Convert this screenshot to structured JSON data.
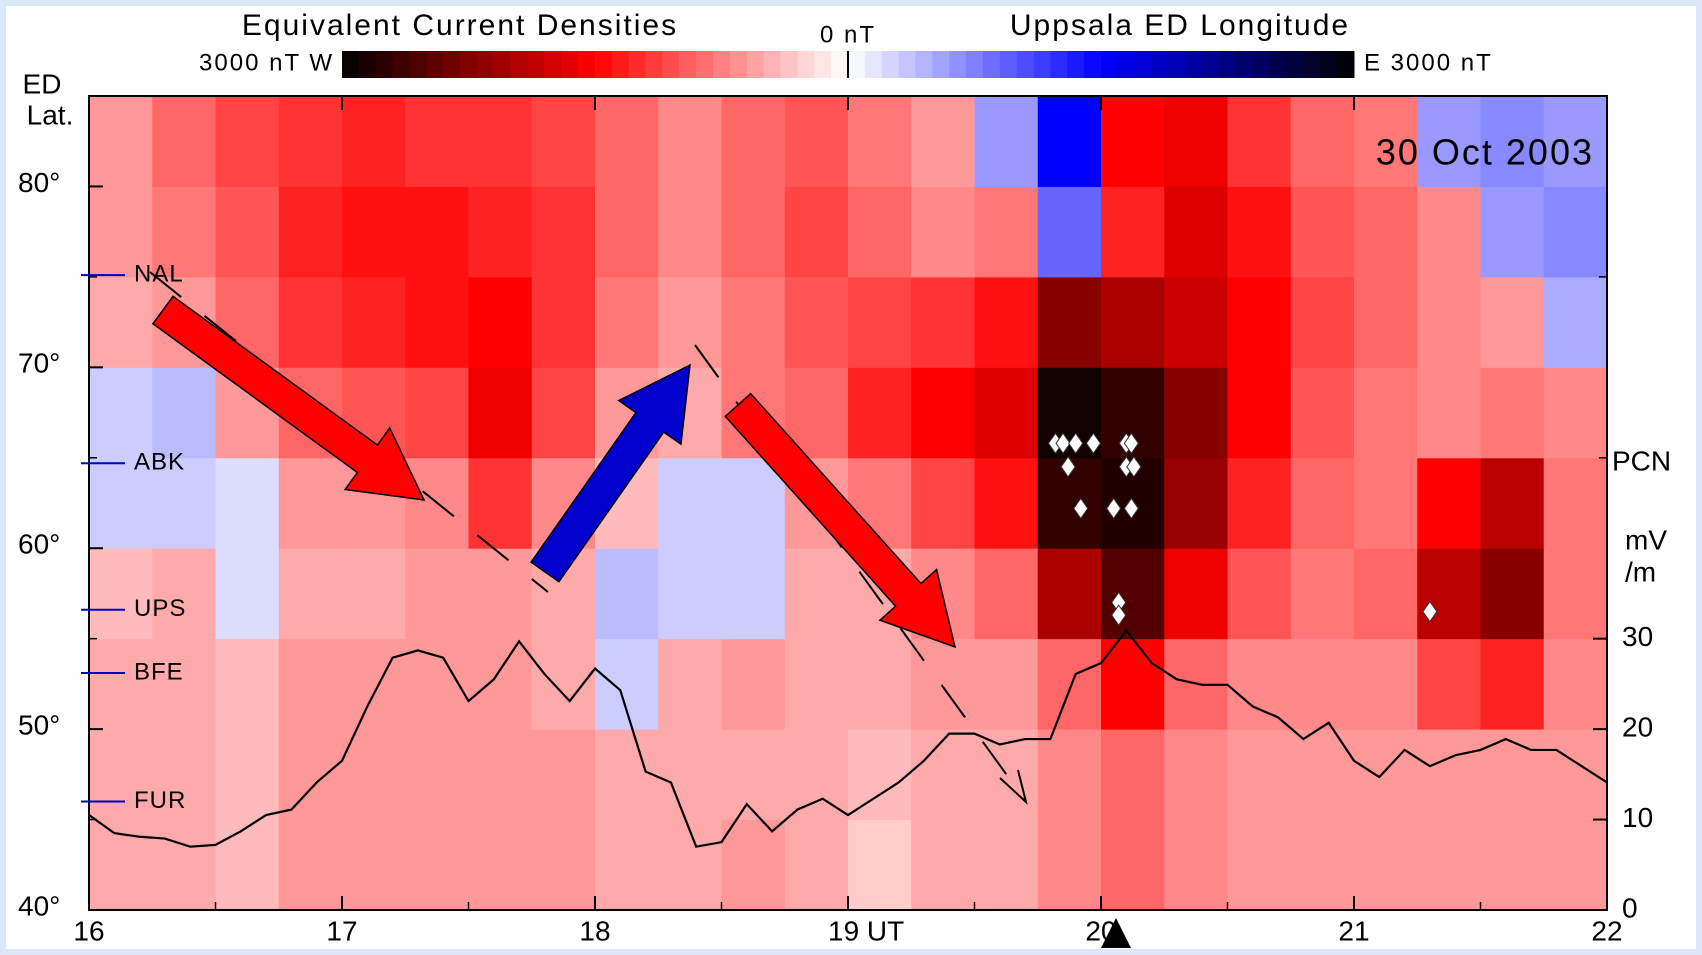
{
  "chart_data": {
    "type": "heatmap",
    "title": "Equivalent Current Densities",
    "subtitle": "Uppsala ED Longitude",
    "date_label": "30 Oct 2003",
    "ylabel_lines": [
      "ED",
      "Lat."
    ],
    "y2label_lines": [
      "mV",
      "/m"
    ],
    "colorbar": {
      "lim": [
        -3000,
        3000
      ],
      "ticks": [
        {
          "value": -3000,
          "label": "3000 nT W"
        },
        {
          "value": 0,
          "label": "0 nT"
        },
        {
          "value": 3000,
          "label": "E 3000 nT"
        }
      ]
    },
    "xlim": [
      16,
      22
    ],
    "xticks": [
      16,
      17,
      18,
      {
        "value": 19,
        "label": "19 UT"
      },
      20,
      21,
      22
    ],
    "ylim": [
      40,
      85
    ],
    "yticks": [
      {
        "value": 40,
        "label": "40°"
      },
      {
        "value": 50,
        "label": "50°"
      },
      {
        "value": 60,
        "label": "60°"
      },
      {
        "value": 70,
        "label": "70°"
      },
      {
        "value": 80,
        "label": "80°"
      }
    ],
    "y2lim": [
      0,
      90
    ],
    "y2ticks": [
      0,
      10,
      20,
      30
    ],
    "stations": {
      "names": [
        "NAL",
        "ABK",
        "UPS",
        "BFE",
        "FUR"
      ],
      "lat": [
        75.1,
        64.7,
        56.6,
        53.1,
        46.0
      ],
      "color": "#0000cc"
    },
    "heatmap": {
      "x_edges": [
        16,
        16.25,
        16.5,
        16.75,
        17,
        17.25,
        17.5,
        17.75,
        18,
        18.25,
        18.5,
        18.75,
        19,
        19.25,
        19.5,
        19.75,
        20,
        20.25,
        20.5,
        20.75,
        21,
        21.25,
        21.5,
        21.75,
        22
      ],
      "lat_edges": [
        40,
        45,
        50,
        55,
        60,
        65,
        70,
        75,
        80,
        85
      ],
      "values": [
        [
          -500,
          -500,
          -400,
          -600,
          -600,
          -600,
          -600,
          -600,
          -500,
          -500,
          -600,
          -500,
          -300,
          -500,
          -500,
          -700,
          -900,
          -700,
          -600,
          -600,
          -600,
          -600,
          -600,
          -600
        ],
        [
          -500,
          -500,
          -400,
          -600,
          -600,
          -600,
          -600,
          -600,
          -500,
          -500,
          -500,
          -500,
          -400,
          -500,
          -500,
          -700,
          -900,
          -700,
          -600,
          -600,
          -600,
          -600,
          -600,
          -600
        ],
        [
          -500,
          -500,
          -400,
          -600,
          -600,
          -600,
          -600,
          -500,
          300,
          -500,
          -600,
          -500,
          -500,
          -600,
          -600,
          -900,
          -1500,
          -900,
          -700,
          -700,
          -700,
          -1100,
          -1300,
          -700
        ],
        [
          -400,
          -500,
          200,
          -500,
          -500,
          -600,
          -600,
          -500,
          400,
          300,
          300,
          -500,
          -500,
          -700,
          -900,
          -2000,
          -2500,
          -1600,
          -1000,
          -800,
          -900,
          -1900,
          -2200,
          -800
        ],
        [
          300,
          300,
          200,
          -600,
          -600,
          -700,
          -1200,
          -700,
          -400,
          300,
          300,
          -600,
          -800,
          -1100,
          -1400,
          -2700,
          -2800,
          -2100,
          -1300,
          -900,
          -800,
          -1500,
          -1900,
          -800
        ],
        [
          300,
          400,
          -600,
          -900,
          -1000,
          -1100,
          -1600,
          -1100,
          -600,
          -500,
          -800,
          -900,
          -1300,
          -1500,
          -1700,
          -2900,
          -2700,
          -2200,
          -1500,
          -1000,
          -800,
          -700,
          -800,
          -700
        ],
        [
          -500,
          -600,
          -900,
          -1200,
          -1300,
          -1400,
          -1500,
          -1200,
          -800,
          -600,
          -800,
          -1000,
          -1100,
          -1200,
          -1400,
          -2200,
          -2000,
          -1800,
          -1500,
          -1100,
          -900,
          -700,
          -600,
          500
        ],
        [
          -600,
          -800,
          -1000,
          -1300,
          -1400,
          -1400,
          -1300,
          -1200,
          -900,
          -700,
          -900,
          -1100,
          -900,
          -700,
          -800,
          900,
          -1300,
          -1700,
          -1400,
          -1000,
          -900,
          -700,
          600,
          700
        ],
        [
          -600,
          -900,
          -1100,
          -1200,
          -1300,
          -1200,
          -1200,
          -1100,
          -900,
          -700,
          -900,
          -1000,
          -800,
          -600,
          600,
          1500,
          -1500,
          -1600,
          -1200,
          -900,
          -800,
          600,
          700,
          600
        ]
      ]
    },
    "series": [
      {
        "name": "PCN",
        "color": "#000000",
        "axis": "y2",
        "x": [
          16.0,
          16.1,
          16.2,
          16.3,
          16.4,
          16.5,
          16.6,
          16.7,
          16.8,
          16.9,
          17.0,
          17.1,
          17.2,
          17.3,
          17.4,
          17.5,
          17.6,
          17.7,
          17.8,
          17.9,
          18.0,
          18.1,
          18.2,
          18.3,
          18.4,
          18.5,
          18.6,
          18.7,
          18.8,
          18.9,
          19.0,
          19.1,
          19.2,
          19.3,
          19.4,
          19.5,
          19.6,
          19.7,
          19.8,
          19.9,
          20.0,
          20.1,
          20.2,
          20.3,
          20.4,
          20.5,
          20.6,
          20.7,
          20.8,
          20.9,
          21.0,
          21.1,
          21.2,
          21.3,
          21.4,
          21.5,
          21.6,
          21.7,
          21.8,
          21.9,
          22.0
        ],
        "values": [
          10.5,
          8.5,
          8.1,
          7.9,
          7.0,
          7.2,
          8.7,
          10.5,
          11.1,
          14.1,
          16.5,
          22.5,
          27.9,
          28.7,
          27.9,
          23.1,
          25.5,
          29.7,
          26.1,
          23.1,
          26.7,
          24.3,
          15.3,
          14.1,
          7.0,
          7.5,
          11.7,
          8.7,
          11.1,
          12.3,
          10.5,
          12.3,
          14.1,
          16.5,
          19.5,
          19.5,
          18.3,
          18.9,
          18.9,
          26.1,
          27.3,
          30.9,
          27.3,
          25.5,
          24.9,
          24.9,
          22.5,
          21.3,
          18.9,
          20.7,
          16.5,
          14.7,
          17.7,
          15.9,
          17.1,
          17.7,
          18.9,
          17.7,
          17.7,
          15.9,
          14.1
        ]
      }
    ],
    "events": {
      "x": [
        19.82,
        19.85,
        19.87,
        19.9,
        19.92,
        19.97,
        20.05,
        20.1,
        20.1,
        20.12,
        20.12,
        20.13,
        20.07,
        20.07,
        21.3
      ],
      "y": [
        65.8,
        65.8,
        64.5,
        65.8,
        62.2,
        65.8,
        62.2,
        65.8,
        64.5,
        62.2,
        65.8,
        64.5,
        57.0,
        56.3,
        56.5
      ]
    }
  }
}
